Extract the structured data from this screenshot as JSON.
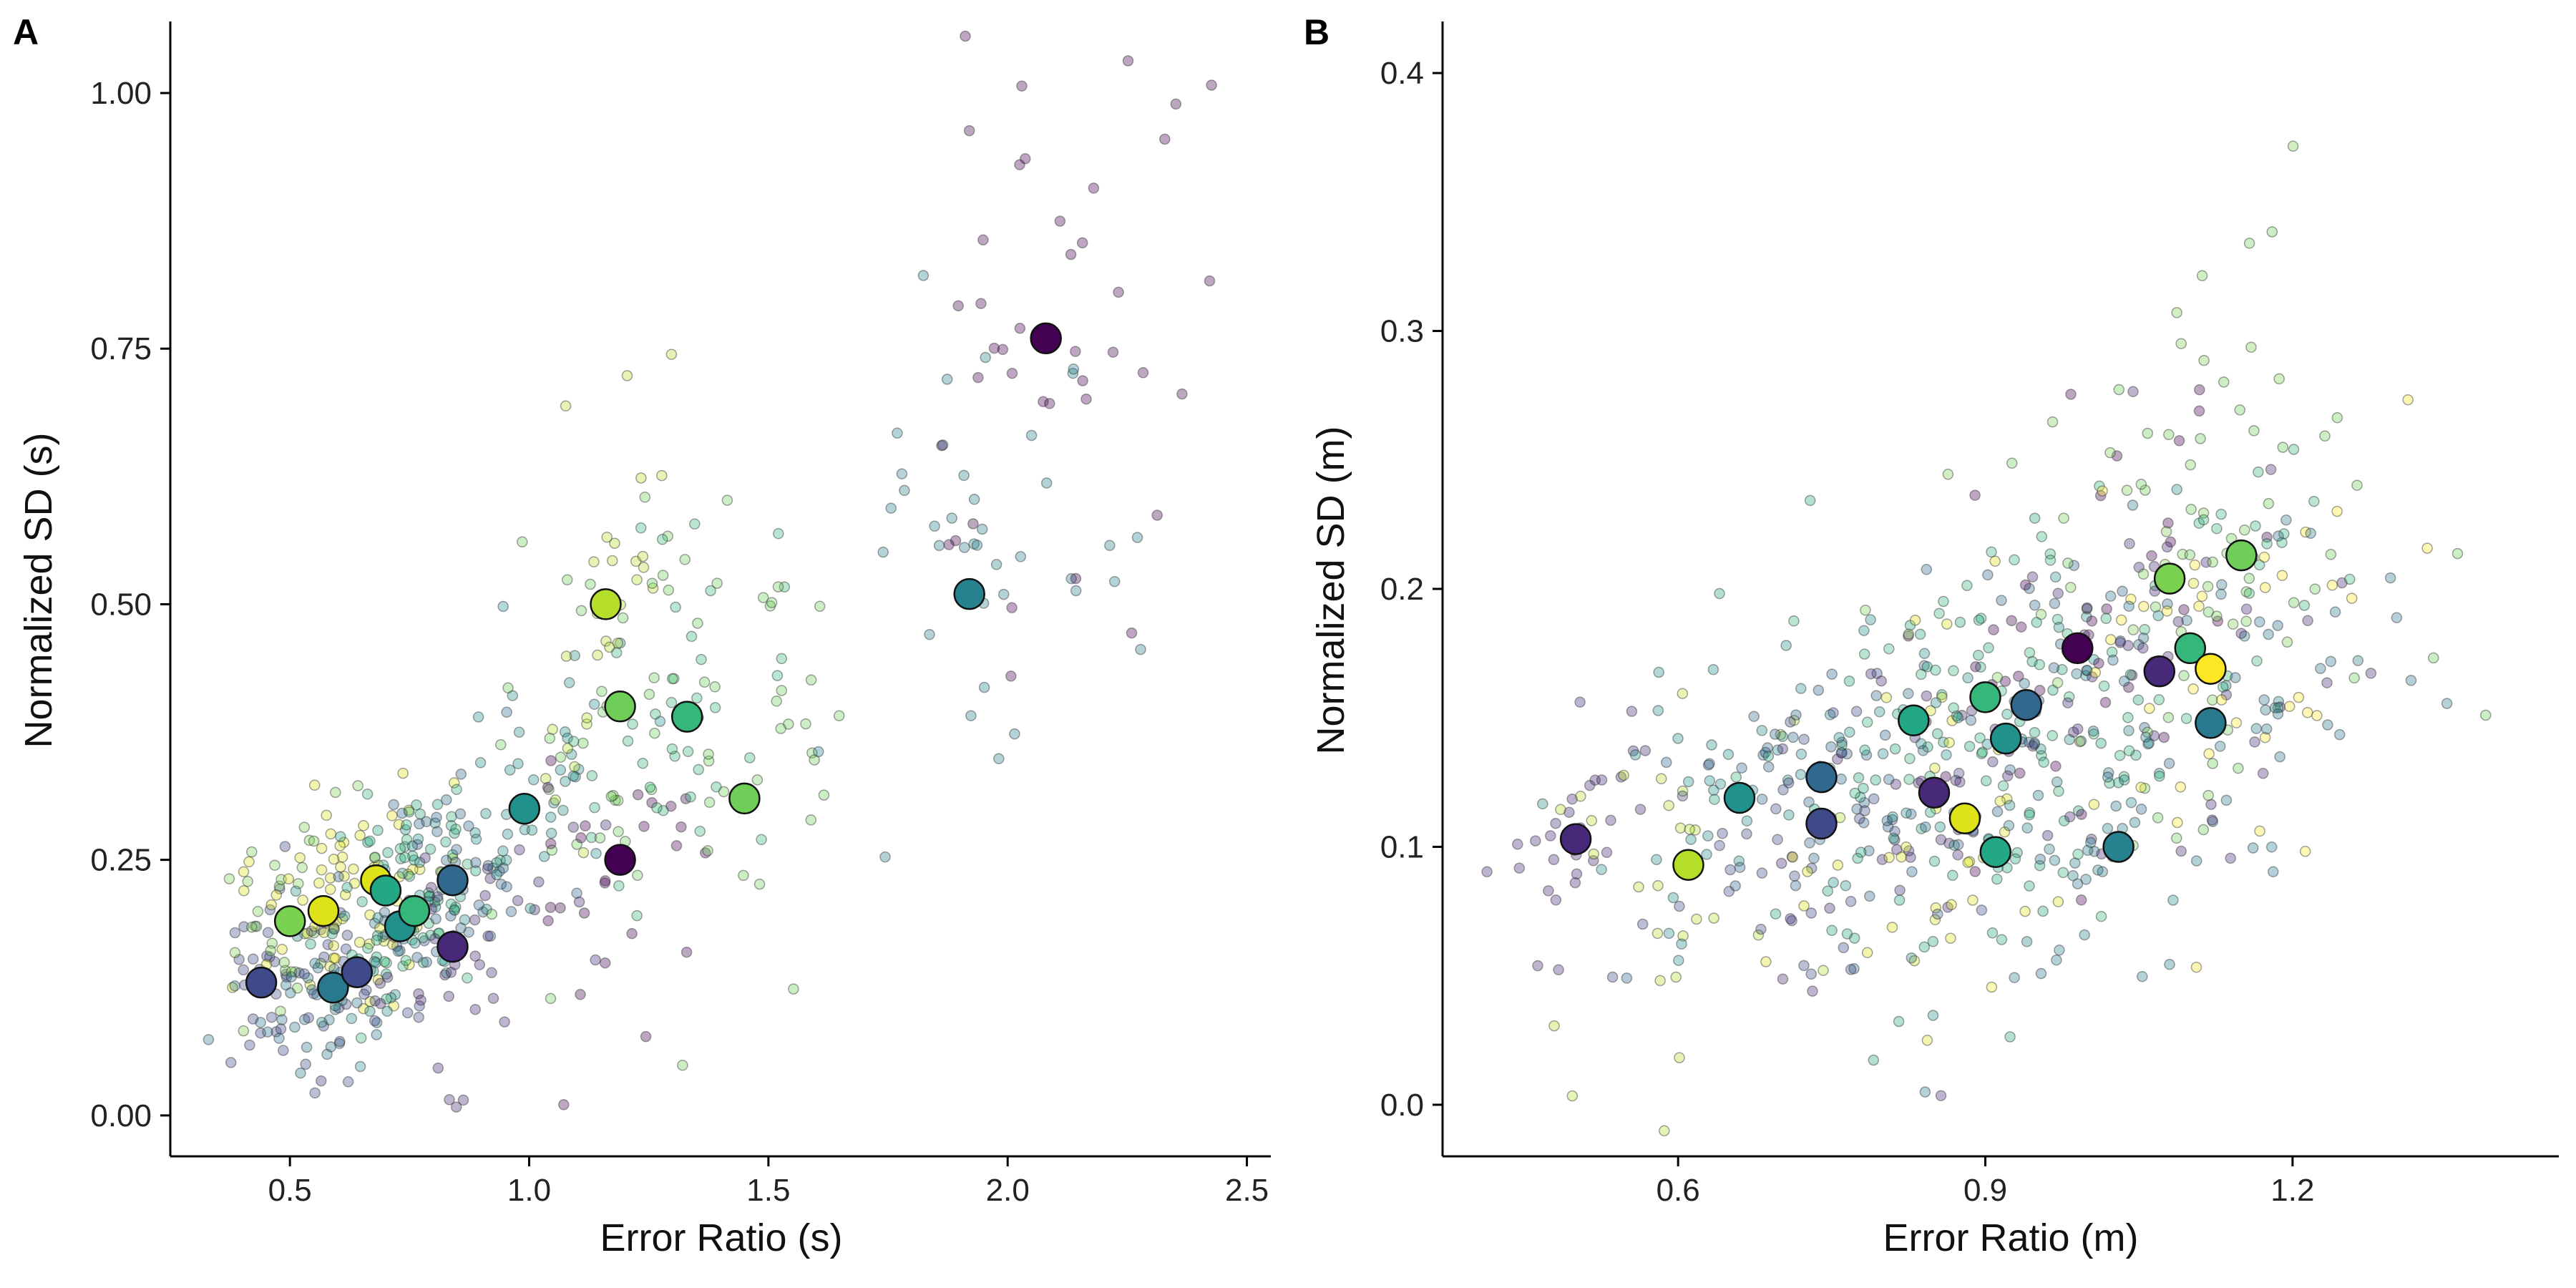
{
  "chart_data": [
    {
      "type": "scatter",
      "panel": "A",
      "xlabel": "Error Ratio (s)",
      "ylabel": "Normalized SD (s)",
      "xlim": [
        0.25,
        2.55
      ],
      "ylim": [
        -0.04,
        1.07
      ],
      "xticks": [
        0.5,
        1.0,
        1.5,
        2.0,
        2.5
      ],
      "xtick_labels": [
        "0.5",
        "1.0",
        "1.5",
        "2.0",
        "2.5"
      ],
      "yticks": [
        0.0,
        0.25,
        0.5,
        0.75,
        1.0
      ],
      "ytick_labels": [
        "0.00",
        "0.25",
        "0.50",
        "0.75",
        "1.00"
      ],
      "grid": false,
      "legend": "none",
      "small_point_alpha": 0.35,
      "clusters": [
        {
          "cx": 0.44,
          "cy": 0.13,
          "color": "#3e4a89",
          "n": 30,
          "sx": 0.05,
          "sy": 0.04
        },
        {
          "cx": 0.5,
          "cy": 0.19,
          "color": "#7ad151",
          "n": 30,
          "sx": 0.07,
          "sy": 0.05
        },
        {
          "cx": 0.57,
          "cy": 0.2,
          "color": "#dde318",
          "n": 40,
          "sx": 0.09,
          "sy": 0.06
        },
        {
          "cx": 0.59,
          "cy": 0.125,
          "color": "#2a788e",
          "n": 40,
          "sx": 0.08,
          "sy": 0.04
        },
        {
          "cx": 0.64,
          "cy": 0.14,
          "color": "#3e4a89",
          "n": 40,
          "sx": 0.09,
          "sy": 0.05
        },
        {
          "cx": 0.68,
          "cy": 0.23,
          "color": "#dde318",
          "n": 40,
          "sx": 0.08,
          "sy": 0.05
        },
        {
          "cx": 0.7,
          "cy": 0.22,
          "color": "#22a884",
          "n": 40,
          "sx": 0.08,
          "sy": 0.05
        },
        {
          "cx": 0.73,
          "cy": 0.185,
          "color": "#21918c",
          "n": 40,
          "sx": 0.08,
          "sy": 0.05
        },
        {
          "cx": 0.76,
          "cy": 0.2,
          "color": "#35b779",
          "n": 40,
          "sx": 0.08,
          "sy": 0.05
        },
        {
          "cx": 0.84,
          "cy": 0.23,
          "color": "#31688e",
          "n": 40,
          "sx": 0.1,
          "sy": 0.06
        },
        {
          "cx": 0.84,
          "cy": 0.165,
          "color": "#482878",
          "n": 40,
          "sx": 0.11,
          "sy": 0.06
        },
        {
          "cx": 0.99,
          "cy": 0.3,
          "color": "#21918c",
          "n": 40,
          "sx": 0.11,
          "sy": 0.07
        },
        {
          "cx": 1.16,
          "cy": 0.5,
          "color": "#b5de2b",
          "n": 30,
          "sx": 0.09,
          "sy": 0.1
        },
        {
          "cx": 1.19,
          "cy": 0.4,
          "color": "#6ece58",
          "n": 40,
          "sx": 0.12,
          "sy": 0.1
        },
        {
          "cx": 1.19,
          "cy": 0.25,
          "color": "#440154",
          "n": 25,
          "sx": 0.1,
          "sy": 0.07
        },
        {
          "cx": 1.33,
          "cy": 0.39,
          "color": "#35b779",
          "n": 40,
          "sx": 0.13,
          "sy": 0.1
        },
        {
          "cx": 1.45,
          "cy": 0.31,
          "color": "#6ece58",
          "n": 30,
          "sx": 0.13,
          "sy": 0.09
        },
        {
          "cx": 1.92,
          "cy": 0.51,
          "color": "#26828e",
          "n": 40,
          "sx": 0.17,
          "sy": 0.12
        },
        {
          "cx": 2.08,
          "cy": 0.76,
          "color": "#440154",
          "n": 40,
          "sx": 0.17,
          "sy": 0.13
        }
      ],
      "means": [
        {
          "x": 0.44,
          "y": 0.13,
          "color": "#3e4a89"
        },
        {
          "x": 0.5,
          "y": 0.19,
          "color": "#7ad151"
        },
        {
          "x": 0.57,
          "y": 0.2,
          "color": "#dde318"
        },
        {
          "x": 0.59,
          "y": 0.125,
          "color": "#2a788e"
        },
        {
          "x": 0.64,
          "y": 0.14,
          "color": "#3e4a89"
        },
        {
          "x": 0.68,
          "y": 0.23,
          "color": "#dde318"
        },
        {
          "x": 0.7,
          "y": 0.22,
          "color": "#22a884"
        },
        {
          "x": 0.73,
          "y": 0.185,
          "color": "#21918c"
        },
        {
          "x": 0.76,
          "y": 0.2,
          "color": "#35b779"
        },
        {
          "x": 0.84,
          "y": 0.23,
          "color": "#31688e"
        },
        {
          "x": 0.84,
          "y": 0.165,
          "color": "#482878"
        },
        {
          "x": 0.99,
          "y": 0.3,
          "color": "#21918c"
        },
        {
          "x": 1.16,
          "y": 0.5,
          "color": "#b5de2b"
        },
        {
          "x": 1.19,
          "y": 0.4,
          "color": "#6ece58"
        },
        {
          "x": 1.19,
          "y": 0.25,
          "color": "#440154"
        },
        {
          "x": 1.33,
          "y": 0.39,
          "color": "#35b779"
        },
        {
          "x": 1.45,
          "y": 0.31,
          "color": "#6ece58"
        },
        {
          "x": 1.92,
          "y": 0.51,
          "color": "#26828e"
        },
        {
          "x": 2.08,
          "y": 0.76,
          "color": "#440154"
        }
      ]
    },
    {
      "type": "scatter",
      "panel": "B",
      "xlabel": "Error Ratio (m)",
      "ylabel": "Normalized SD (m)",
      "xlim": [
        0.37,
        1.46
      ],
      "ylim": [
        -0.02,
        0.42
      ],
      "xticks": [
        0.6,
        0.9,
        1.2
      ],
      "xtick_labels": [
        "0.6",
        "0.9",
        "1.2"
      ],
      "yticks": [
        0.0,
        0.1,
        0.2,
        0.3,
        0.4
      ],
      "ytick_labels": [
        "0.0",
        "0.1",
        "0.2",
        "0.3",
        "0.4"
      ],
      "grid": false,
      "legend": "none",
      "small_point_alpha": 0.35,
      "clusters": [
        {
          "cx": 0.5,
          "cy": 0.103,
          "color": "#482878",
          "n": 30,
          "sx": 0.04,
          "sy": 0.025
        },
        {
          "cx": 0.61,
          "cy": 0.093,
          "color": "#b5de2b",
          "n": 30,
          "sx": 0.07,
          "sy": 0.03
        },
        {
          "cx": 0.66,
          "cy": 0.119,
          "color": "#21918c",
          "n": 40,
          "sx": 0.08,
          "sy": 0.03
        },
        {
          "cx": 0.74,
          "cy": 0.127,
          "color": "#31688e",
          "n": 40,
          "sx": 0.08,
          "sy": 0.03
        },
        {
          "cx": 0.74,
          "cy": 0.109,
          "color": "#3e4a89",
          "n": 40,
          "sx": 0.08,
          "sy": 0.03
        },
        {
          "cx": 0.83,
          "cy": 0.149,
          "color": "#22a884",
          "n": 40,
          "sx": 0.09,
          "sy": 0.035
        },
        {
          "cx": 0.85,
          "cy": 0.121,
          "color": "#482878",
          "n": 40,
          "sx": 0.09,
          "sy": 0.035
        },
        {
          "cx": 0.88,
          "cy": 0.111,
          "color": "#dde318",
          "n": 40,
          "sx": 0.09,
          "sy": 0.035
        },
        {
          "cx": 0.9,
          "cy": 0.158,
          "color": "#35b779",
          "n": 40,
          "sx": 0.09,
          "sy": 0.035
        },
        {
          "cx": 0.91,
          "cy": 0.098,
          "color": "#22a884",
          "n": 40,
          "sx": 0.09,
          "sy": 0.035
        },
        {
          "cx": 0.92,
          "cy": 0.142,
          "color": "#21918c",
          "n": 40,
          "sx": 0.09,
          "sy": 0.035
        },
        {
          "cx": 0.94,
          "cy": 0.155,
          "color": "#31688e",
          "n": 40,
          "sx": 0.09,
          "sy": 0.035
        },
        {
          "cx": 0.99,
          "cy": 0.177,
          "color": "#440154",
          "n": 40,
          "sx": 0.09,
          "sy": 0.04
        },
        {
          "cx": 1.03,
          "cy": 0.1,
          "color": "#26828e",
          "n": 40,
          "sx": 0.09,
          "sy": 0.035
        },
        {
          "cx": 1.07,
          "cy": 0.168,
          "color": "#482878",
          "n": 40,
          "sx": 0.09,
          "sy": 0.04
        },
        {
          "cx": 1.08,
          "cy": 0.204,
          "color": "#7ad151",
          "n": 40,
          "sx": 0.1,
          "sy": 0.045
        },
        {
          "cx": 1.1,
          "cy": 0.177,
          "color": "#35b779",
          "n": 40,
          "sx": 0.1,
          "sy": 0.045
        },
        {
          "cx": 1.12,
          "cy": 0.169,
          "color": "#fde725",
          "n": 40,
          "sx": 0.1,
          "sy": 0.05
        },
        {
          "cx": 1.12,
          "cy": 0.148,
          "color": "#2a788e",
          "n": 40,
          "sx": 0.1,
          "sy": 0.04
        },
        {
          "cx": 1.15,
          "cy": 0.213,
          "color": "#6ece58",
          "n": 40,
          "sx": 0.1,
          "sy": 0.05
        }
      ],
      "means": [
        {
          "x": 0.5,
          "y": 0.103,
          "color": "#482878"
        },
        {
          "x": 0.61,
          "y": 0.093,
          "color": "#b5de2b"
        },
        {
          "x": 0.66,
          "y": 0.119,
          "color": "#21918c"
        },
        {
          "x": 0.74,
          "y": 0.127,
          "color": "#31688e"
        },
        {
          "x": 0.74,
          "y": 0.109,
          "color": "#3e4a89"
        },
        {
          "x": 0.83,
          "y": 0.149,
          "color": "#22a884"
        },
        {
          "x": 0.85,
          "y": 0.121,
          "color": "#482878"
        },
        {
          "x": 0.88,
          "y": 0.111,
          "color": "#dde318"
        },
        {
          "x": 0.9,
          "y": 0.158,
          "color": "#35b779"
        },
        {
          "x": 0.91,
          "y": 0.098,
          "color": "#22a884"
        },
        {
          "x": 0.92,
          "y": 0.142,
          "color": "#21918c"
        },
        {
          "x": 0.94,
          "y": 0.155,
          "color": "#31688e"
        },
        {
          "x": 0.99,
          "y": 0.177,
          "color": "#440154"
        },
        {
          "x": 1.03,
          "y": 0.1,
          "color": "#26828e"
        },
        {
          "x": 1.07,
          "y": 0.168,
          "color": "#482878"
        },
        {
          "x": 1.08,
          "y": 0.204,
          "color": "#7ad151"
        },
        {
          "x": 1.1,
          "y": 0.177,
          "color": "#35b779"
        },
        {
          "x": 1.12,
          "y": 0.169,
          "color": "#fde725"
        },
        {
          "x": 1.12,
          "y": 0.148,
          "color": "#2a788e"
        },
        {
          "x": 1.15,
          "y": 0.213,
          "color": "#6ece58"
        }
      ]
    }
  ]
}
